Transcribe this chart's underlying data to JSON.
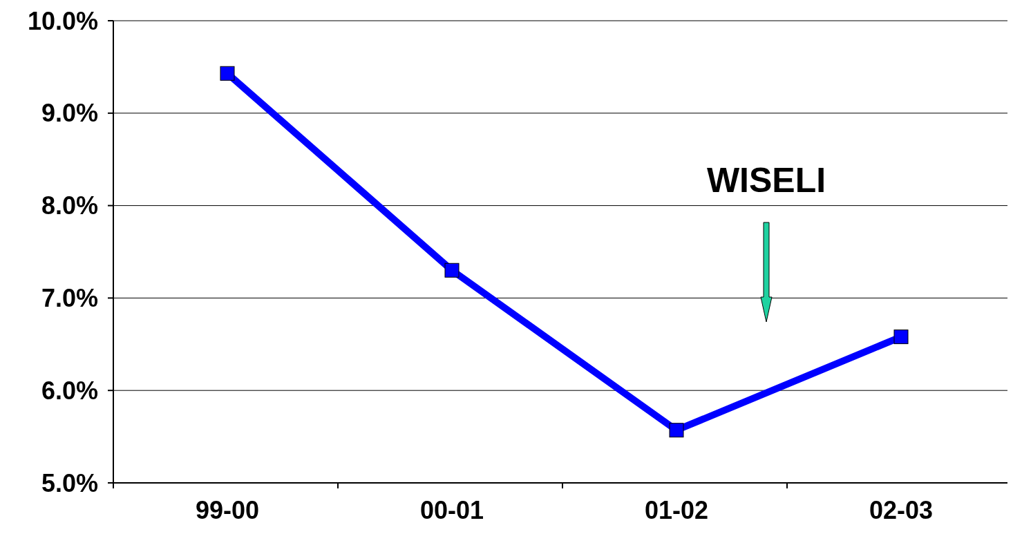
{
  "chart_data": {
    "type": "line",
    "categories": [
      "99-00",
      "00-01",
      "01-02",
      "02-03"
    ],
    "series": [
      {
        "color": "#0000ff",
        "values": [
          9.43,
          7.3,
          5.57,
          6.58
        ]
      }
    ],
    "ylim": [
      5,
      10
    ],
    "yticks": [
      {
        "value": 5,
        "label": "5.0%"
      },
      {
        "value": 6,
        "label": "6.0%"
      },
      {
        "value": 7,
        "label": "7.0%"
      },
      {
        "value": 8,
        "label": "8.0%"
      },
      {
        "value": 9,
        "label": "9.0%"
      },
      {
        "value": 10,
        "label": "10.0%"
      }
    ],
    "grid": "y",
    "marker": "square",
    "line_style": "solid",
    "annotations": [
      "WISELI"
    ]
  }
}
